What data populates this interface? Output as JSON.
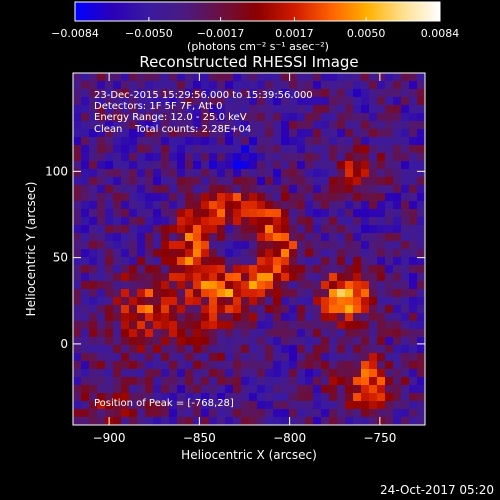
{
  "chart_data": {
    "type": "heatmap",
    "title": "Reconstructed RHESSI Image",
    "xlabel": "Heliocentric X (arcsec)",
    "ylabel": "Heliocentric Y (arcsec)",
    "xlim": [
      -920,
      -725
    ],
    "ylim": [
      -47,
      157
    ],
    "xticks": [
      -900,
      -850,
      -800,
      -750
    ],
    "xtick_labels": [
      "−900",
      "−850",
      "−800",
      "−750"
    ],
    "yticks": [
      0,
      50,
      100
    ],
    "ytick_labels": [
      "0",
      "50",
      "100"
    ],
    "colorbar": {
      "range": [
        -0.0084,
        0.0084
      ],
      "ticks": [
        -0.0084,
        -0.005,
        -0.0017,
        0.0017,
        0.005,
        0.0084
      ],
      "tick_labels": [
        "−0.0084",
        "−0.0050",
        "−0.0017",
        "0.0017",
        "0.0050",
        "0.0084"
      ],
      "unit_label": "(photons cm⁻² s⁻¹ asec⁻²)"
    },
    "annotations": [
      "23-Dec-2015 15:29:56.000 to 15:39:56.000",
      "Detectors: 1F 5F 7F, Att 0",
      "Energy Range: 12.0 - 25.0 keV",
      "Clean    Total counts: 2.28E+04"
    ],
    "peak_label": "Position of Peak = [-768,28]",
    "peak": [
      -768,
      28
    ],
    "grid": false,
    "colormap_stops": [
      "#0000ff",
      "#2a00b8",
      "#3a1aa0",
      "#4a1a80",
      "#6a1040",
      "#8c0000",
      "#d01a00",
      "#ff6000",
      "#ffb000",
      "#ffe090",
      "#ffffff"
    ],
    "features": [
      {
        "name": "ring",
        "center": [
          -830,
          57
        ],
        "radius": 24,
        "width": 9,
        "amp": 0.0062
      },
      {
        "name": "ring-core",
        "center": [
          -830,
          55
        ],
        "radius": 0,
        "width": 8,
        "amp": -0.0028
      },
      {
        "name": "east-source",
        "center": [
          -880,
          20
        ],
        "radius": 0,
        "width": 16,
        "amp": 0.0055
      },
      {
        "name": "west-source",
        "center": [
          -768,
          28
        ],
        "radius": 0,
        "width": 11,
        "amp": 0.0084
      },
      {
        "name": "west-lower",
        "center": [
          -758,
          -22
        ],
        "radius": 0,
        "width": 12,
        "amp": 0.0062
      },
      {
        "name": "west-upper",
        "center": [
          -762,
          100
        ],
        "radius": 0,
        "width": 9,
        "amp": 0.0046
      },
      {
        "name": "south",
        "center": [
          -840,
          10
        ],
        "radius": 0,
        "width": 14,
        "amp": 0.003
      },
      {
        "name": "top-arc",
        "center": [
          -825,
          100
        ],
        "radius": 0,
        "width": 12,
        "amp": -0.0022
      },
      {
        "name": "bottom-left",
        "center": [
          -900,
          -35
        ],
        "radius": 0,
        "width": 12,
        "amp": 0.0035
      }
    ]
  },
  "footer": {
    "date": "24-Oct-2017 05:20"
  }
}
